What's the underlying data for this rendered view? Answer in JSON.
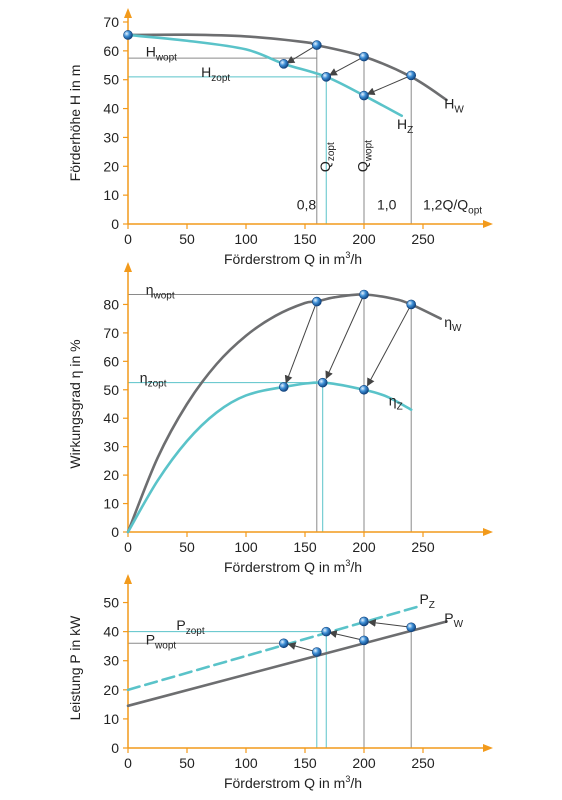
{
  "colors": {
    "axis": "#f29a1b",
    "pump": "#6d6e70",
    "viscous": "#5ac3c9",
    "guide": "#8a8a8a",
    "marker": "#1f6fb5",
    "text": "#222222"
  },
  "xlabel": {
    "pre": "Förderstrom Q in m",
    "sup": "3",
    "post": "/h"
  },
  "chart_data": [
    {
      "type": "line",
      "ylabel": "Förderhöhe H in m",
      "xlim": [
        0,
        300
      ],
      "ylim": [
        0,
        70
      ],
      "xticks": [
        0,
        50,
        100,
        150,
        200,
        250
      ],
      "yticks": [
        0,
        10,
        20,
        30,
        40,
        50,
        60,
        70
      ],
      "series": [
        {
          "name": "Hw",
          "color": "pump",
          "x": [
            0,
            50,
            100,
            150,
            160,
            200,
            240,
            270
          ],
          "y": [
            65.5,
            65.6,
            65.0,
            63.0,
            62.0,
            58.0,
            51.0,
            43.0
          ]
        },
        {
          "name": "Hz",
          "color": "viscous",
          "x": [
            0,
            50,
            100,
            132,
            168,
            200,
            232
          ],
          "y": [
            65.5,
            63.5,
            60.5,
            55.5,
            51.0,
            44.5,
            37.5
          ]
        }
      ],
      "markers": [
        {
          "x": 0,
          "y": 65.5
        },
        {
          "x": 160,
          "y": 62.0
        },
        {
          "x": 200,
          "y": 58.0
        },
        {
          "x": 240,
          "y": 51.5
        },
        {
          "x": 132,
          "y": 55.5
        },
        {
          "x": 168,
          "y": 51.0
        },
        {
          "x": 200,
          "y": 44.5
        }
      ],
      "arrows": [
        {
          "from": [
            160,
            62.0
          ],
          "to": [
            135,
            55.8
          ]
        },
        {
          "from": [
            200,
            58.0
          ],
          "to": [
            171,
            51.6
          ]
        },
        {
          "from": [
            240,
            51.5
          ],
          "to": [
            203,
            45.0
          ]
        }
      ],
      "hguides": [
        {
          "y": 57.5,
          "x1": 0,
          "x2": 160,
          "color": "guide"
        },
        {
          "y": 51.0,
          "x1": 0,
          "x2": 168,
          "color": "viscous"
        }
      ],
      "vguides": [
        {
          "x": 160,
          "y1": 0,
          "y2": 62.0,
          "color": "guide"
        },
        {
          "x": 168,
          "y1": 0,
          "y2": 51.0,
          "color": "viscous"
        },
        {
          "x": 200,
          "y1": 0,
          "y2": 58.0,
          "color": "guide"
        },
        {
          "x": 240,
          "y1": 0,
          "y2": 51.5,
          "color": "guide"
        }
      ],
      "annotations": [
        {
          "main": "H",
          "sub": "wopt",
          "x": 15,
          "y": 58.0
        },
        {
          "main": "H",
          "sub": "zopt",
          "x": 62,
          "y": 51.0
        },
        {
          "main": "H",
          "sub": "W",
          "x": 268,
          "y": 40.0
        },
        {
          "main": "H",
          "sub": "Z",
          "x": 228,
          "y": 33.0
        },
        {
          "main": "Q",
          "sub": "zopt",
          "x": 171,
          "y": 18.0,
          "rotate": true
        },
        {
          "main": "Q",
          "sub": "wopt",
          "x": 203,
          "y": 18.0,
          "rotate": true
        },
        {
          "main": "0,8",
          "sub": "",
          "x": 143,
          "y": 5.0
        },
        {
          "main": "1,0",
          "sub": "",
          "x": 211,
          "y": 5.0
        },
        {
          "main": "1,2Q/Q",
          "sub": "opt",
          "x": 250,
          "y": 5.0
        }
      ]
    },
    {
      "type": "line",
      "ylabel": "Wirkungsgrad η in %",
      "xlim": [
        0,
        300
      ],
      "ylim": [
        0,
        90
      ],
      "xticks": [
        0,
        50,
        100,
        150,
        200,
        250
      ],
      "yticks": [
        0,
        10,
        20,
        30,
        40,
        50,
        60,
        70,
        80
      ],
      "series": [
        {
          "name": "ηw",
          "color": "pump",
          "x": [
            0,
            25,
            50,
            75,
            100,
            125,
            150,
            160,
            175,
            200,
            225,
            240,
            265
          ],
          "y": [
            0,
            26,
            45,
            59,
            69,
            76,
            80.5,
            81,
            82.5,
            83.5,
            82,
            80,
            75
          ]
        },
        {
          "name": "ηz",
          "color": "viscous",
          "x": [
            0,
            25,
            50,
            75,
            100,
            132,
            165,
            200,
            220,
            240
          ],
          "y": [
            0,
            18,
            32,
            42,
            48,
            51,
            52.5,
            50,
            47.5,
            43
          ]
        }
      ],
      "markers": [
        {
          "x": 160,
          "y": 81
        },
        {
          "x": 200,
          "y": 83.5
        },
        {
          "x": 240,
          "y": 80
        },
        {
          "x": 132,
          "y": 51
        },
        {
          "x": 165,
          "y": 52.5
        },
        {
          "x": 200,
          "y": 50
        }
      ],
      "arrows": [
        {
          "from": [
            160,
            81
          ],
          "to": [
            134,
            52.5
          ]
        },
        {
          "from": [
            200,
            83.5
          ],
          "to": [
            168,
            54
          ]
        },
        {
          "from": [
            240,
            80
          ],
          "to": [
            203,
            51.5
          ]
        }
      ],
      "hguides": [
        {
          "y": 83.5,
          "x1": 0,
          "x2": 200,
          "color": "guide"
        },
        {
          "y": 52.5,
          "x1": 0,
          "x2": 165,
          "color": "viscous"
        }
      ],
      "vguides": [
        {
          "x": 160,
          "y1": 0,
          "y2": 81,
          "color": "guide"
        },
        {
          "x": 165,
          "y1": 0,
          "y2": 52.5,
          "color": "viscous"
        },
        {
          "x": 200,
          "y1": 0,
          "y2": 83.5,
          "color": "guide"
        },
        {
          "x": 240,
          "y1": 0,
          "y2": 80,
          "color": "guide"
        }
      ],
      "annotations": [
        {
          "main": "η",
          "sub": "wopt",
          "x": 15,
          "y": 83.5
        },
        {
          "main": "η",
          "sub": "zopt",
          "x": 10,
          "y": 52.5
        },
        {
          "main": "η",
          "sub": "W",
          "x": 268,
          "y": 72.0
        },
        {
          "main": "η",
          "sub": "Z",
          "x": 221,
          "y": 44.5
        }
      ]
    },
    {
      "type": "line",
      "ylabel": "Leistung P in kW",
      "xlim": [
        0,
        300
      ],
      "ylim": [
        0,
        55
      ],
      "xticks": [
        0,
        50,
        100,
        150,
        200,
        250
      ],
      "yticks": [
        0,
        10,
        20,
        30,
        40,
        50
      ],
      "series": [
        {
          "name": "Pw",
          "color": "pump",
          "x": [
            0,
            270
          ],
          "y": [
            14.5,
            43.5
          ]
        },
        {
          "name": "Pz",
          "color": "viscous",
          "dash": true,
          "x": [
            0,
            245
          ],
          "y": [
            20,
            48.5
          ]
        }
      ],
      "markers": [
        {
          "x": 160,
          "y": 33
        },
        {
          "x": 200,
          "y": 37
        },
        {
          "x": 240,
          "y": 41.5
        },
        {
          "x": 132,
          "y": 36
        },
        {
          "x": 168,
          "y": 40
        },
        {
          "x": 200,
          "y": 43.5
        }
      ],
      "arrows": [
        {
          "from": [
            160,
            33
          ],
          "to": [
            136,
            35.7
          ]
        },
        {
          "from": [
            200,
            37
          ],
          "to": [
            171,
            39.7
          ]
        },
        {
          "from": [
            240,
            41.5
          ],
          "to": [
            204,
            43.3
          ]
        }
      ],
      "hguides": [
        {
          "y": 36,
          "x1": 0,
          "x2": 132,
          "color": "guide"
        },
        {
          "y": 40,
          "x1": 0,
          "x2": 168,
          "color": "viscous"
        }
      ],
      "vguides": [
        {
          "x": 160,
          "y1": 0,
          "y2": 33,
          "color": "viscous"
        },
        {
          "x": 168,
          "y1": 0,
          "y2": 40,
          "color": "viscous"
        },
        {
          "x": 200,
          "y1": 0,
          "y2": 43.5,
          "color": "guide"
        },
        {
          "x": 240,
          "y1": 0,
          "y2": 41.5,
          "color": "guide"
        }
      ],
      "annotations": [
        {
          "main": "P",
          "sub": "zopt",
          "x": 41,
          "y": 40.5
        },
        {
          "main": "P",
          "sub": "wopt",
          "x": 15,
          "y": 35.5
        },
        {
          "main": "P",
          "sub": "Z",
          "x": 247,
          "y": 49.5
        },
        {
          "main": "P",
          "sub": "W",
          "x": 268,
          "y": 43.0
        }
      ]
    }
  ]
}
